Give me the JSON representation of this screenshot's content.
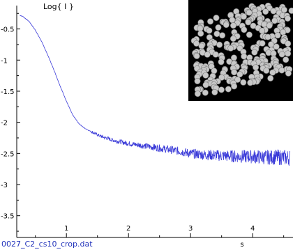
{
  "chart_data": {
    "type": "line",
    "title": "",
    "ylabel": "Log{ I }",
    "xlabel": "s",
    "file_label": "0027_C2_cs10_crop.dat",
    "xlim": [
      0.2,
      4.65
    ],
    "ylim": [
      -3.85,
      -0.18
    ],
    "x_ticks": [
      1,
      2,
      3,
      4
    ],
    "x_tick_labels": [
      "1",
      "2",
      "3",
      "4"
    ],
    "y_ticks": [
      -0.5,
      -1,
      -1.5,
      -2,
      -2.5,
      -3,
      -3.5
    ],
    "y_tick_labels": [
      "-0.5",
      "-1",
      "-1.5",
      "-2",
      "-2.5",
      "-3",
      "-3.5"
    ],
    "grid": false,
    "legend": "none",
    "series": [
      {
        "color": "#3a3ad8",
        "x": [
          0.25,
          0.3,
          0.4,
          0.5,
          0.6,
          0.7,
          0.8,
          0.9,
          1.0,
          1.1,
          1.2,
          1.3,
          1.4,
          1.5,
          1.6,
          1.8,
          2.0,
          2.2,
          2.4,
          2.6,
          2.8,
          3.0,
          3.2,
          3.4,
          3.6,
          3.8,
          4.0,
          4.2,
          4.4,
          4.6
        ],
        "y": [
          -0.28,
          -0.3,
          -0.38,
          -0.52,
          -0.7,
          -0.92,
          -1.16,
          -1.42,
          -1.66,
          -1.88,
          -2.02,
          -2.1,
          -2.15,
          -2.2,
          -2.24,
          -2.3,
          -2.34,
          -2.37,
          -2.4,
          -2.43,
          -2.46,
          -2.5,
          -2.52,
          -2.53,
          -2.54,
          -2.55,
          -2.55,
          -2.56,
          -2.56,
          -2.57
        ]
      }
    ]
  },
  "inset": {
    "description_icon": "bead-model-image",
    "background": "#000000",
    "bead_color": "#c8c8c8"
  }
}
